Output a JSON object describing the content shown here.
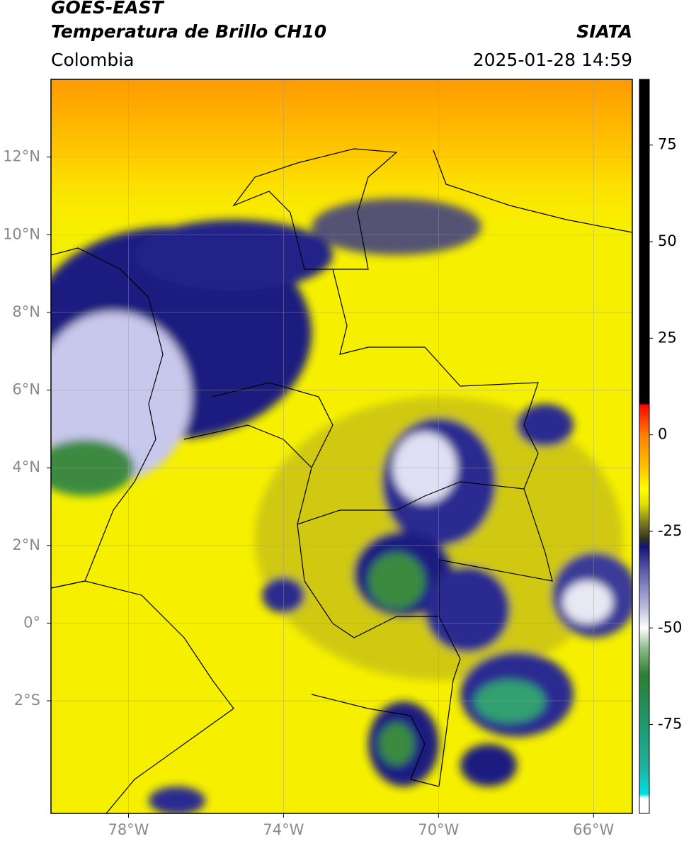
{
  "chart_data": {
    "type": "map",
    "header": {
      "source": "GOES-EAST",
      "title": "Temperatura de Brillo CH10",
      "org": "SIATA",
      "region": "Colombia",
      "timestamp": "2025-01-28 14:59"
    },
    "xlim": [
      -80,
      -65
    ],
    "ylim": [
      -4.9,
      14
    ],
    "xticks": [
      {
        "value": -78,
        "label": "78°W"
      },
      {
        "value": -74,
        "label": "74°W"
      },
      {
        "value": -70,
        "label": "70°W"
      },
      {
        "value": -66,
        "label": "66°W"
      }
    ],
    "yticks": [
      {
        "value": -2,
        "label": "2°S"
      },
      {
        "value": 0,
        "label": "0°"
      },
      {
        "value": 2,
        "label": "2°N"
      },
      {
        "value": 4,
        "label": "4°N"
      },
      {
        "value": 6,
        "label": "6°N"
      },
      {
        "value": 8,
        "label": "8°N"
      },
      {
        "value": 10,
        "label": "10°N"
      },
      {
        "value": 12,
        "label": "12°N"
      }
    ],
    "grid": true,
    "colorbar": {
      "lim": [
        -98,
        92
      ],
      "ticks": [
        -75,
        -50,
        -25,
        0,
        25,
        50,
        75
      ],
      "stops": [
        {
          "value": -98,
          "color": "#ffffff"
        },
        {
          "value": -94,
          "color": "#ffffff"
        },
        {
          "value": -93,
          "color": "#00e0e0"
        },
        {
          "value": -86,
          "color": "#20b0a0"
        },
        {
          "value": -75,
          "color": "#1e9a70"
        },
        {
          "value": -62,
          "color": "#2e7d32"
        },
        {
          "value": -55,
          "color": "#8fbf8f"
        },
        {
          "value": -50,
          "color": "#ffffff"
        },
        {
          "value": -45,
          "color": "#c0c0e0"
        },
        {
          "value": -35,
          "color": "#5a5aa8"
        },
        {
          "value": -29,
          "color": "#141478"
        },
        {
          "value": -27,
          "color": "#303020"
        },
        {
          "value": -22,
          "color": "#8a8a20"
        },
        {
          "value": -18,
          "color": "#e0e000"
        },
        {
          "value": -14,
          "color": "#ffff00"
        },
        {
          "value": -8,
          "color": "#ffc000"
        },
        {
          "value": 0,
          "color": "#ff8000"
        },
        {
          "value": 5,
          "color": "#ff3000"
        },
        {
          "value": 8,
          "color": "#ff0000"
        },
        {
          "value": 8,
          "color": "#000000"
        },
        {
          "value": 92,
          "color": "#000000"
        }
      ]
    }
  }
}
